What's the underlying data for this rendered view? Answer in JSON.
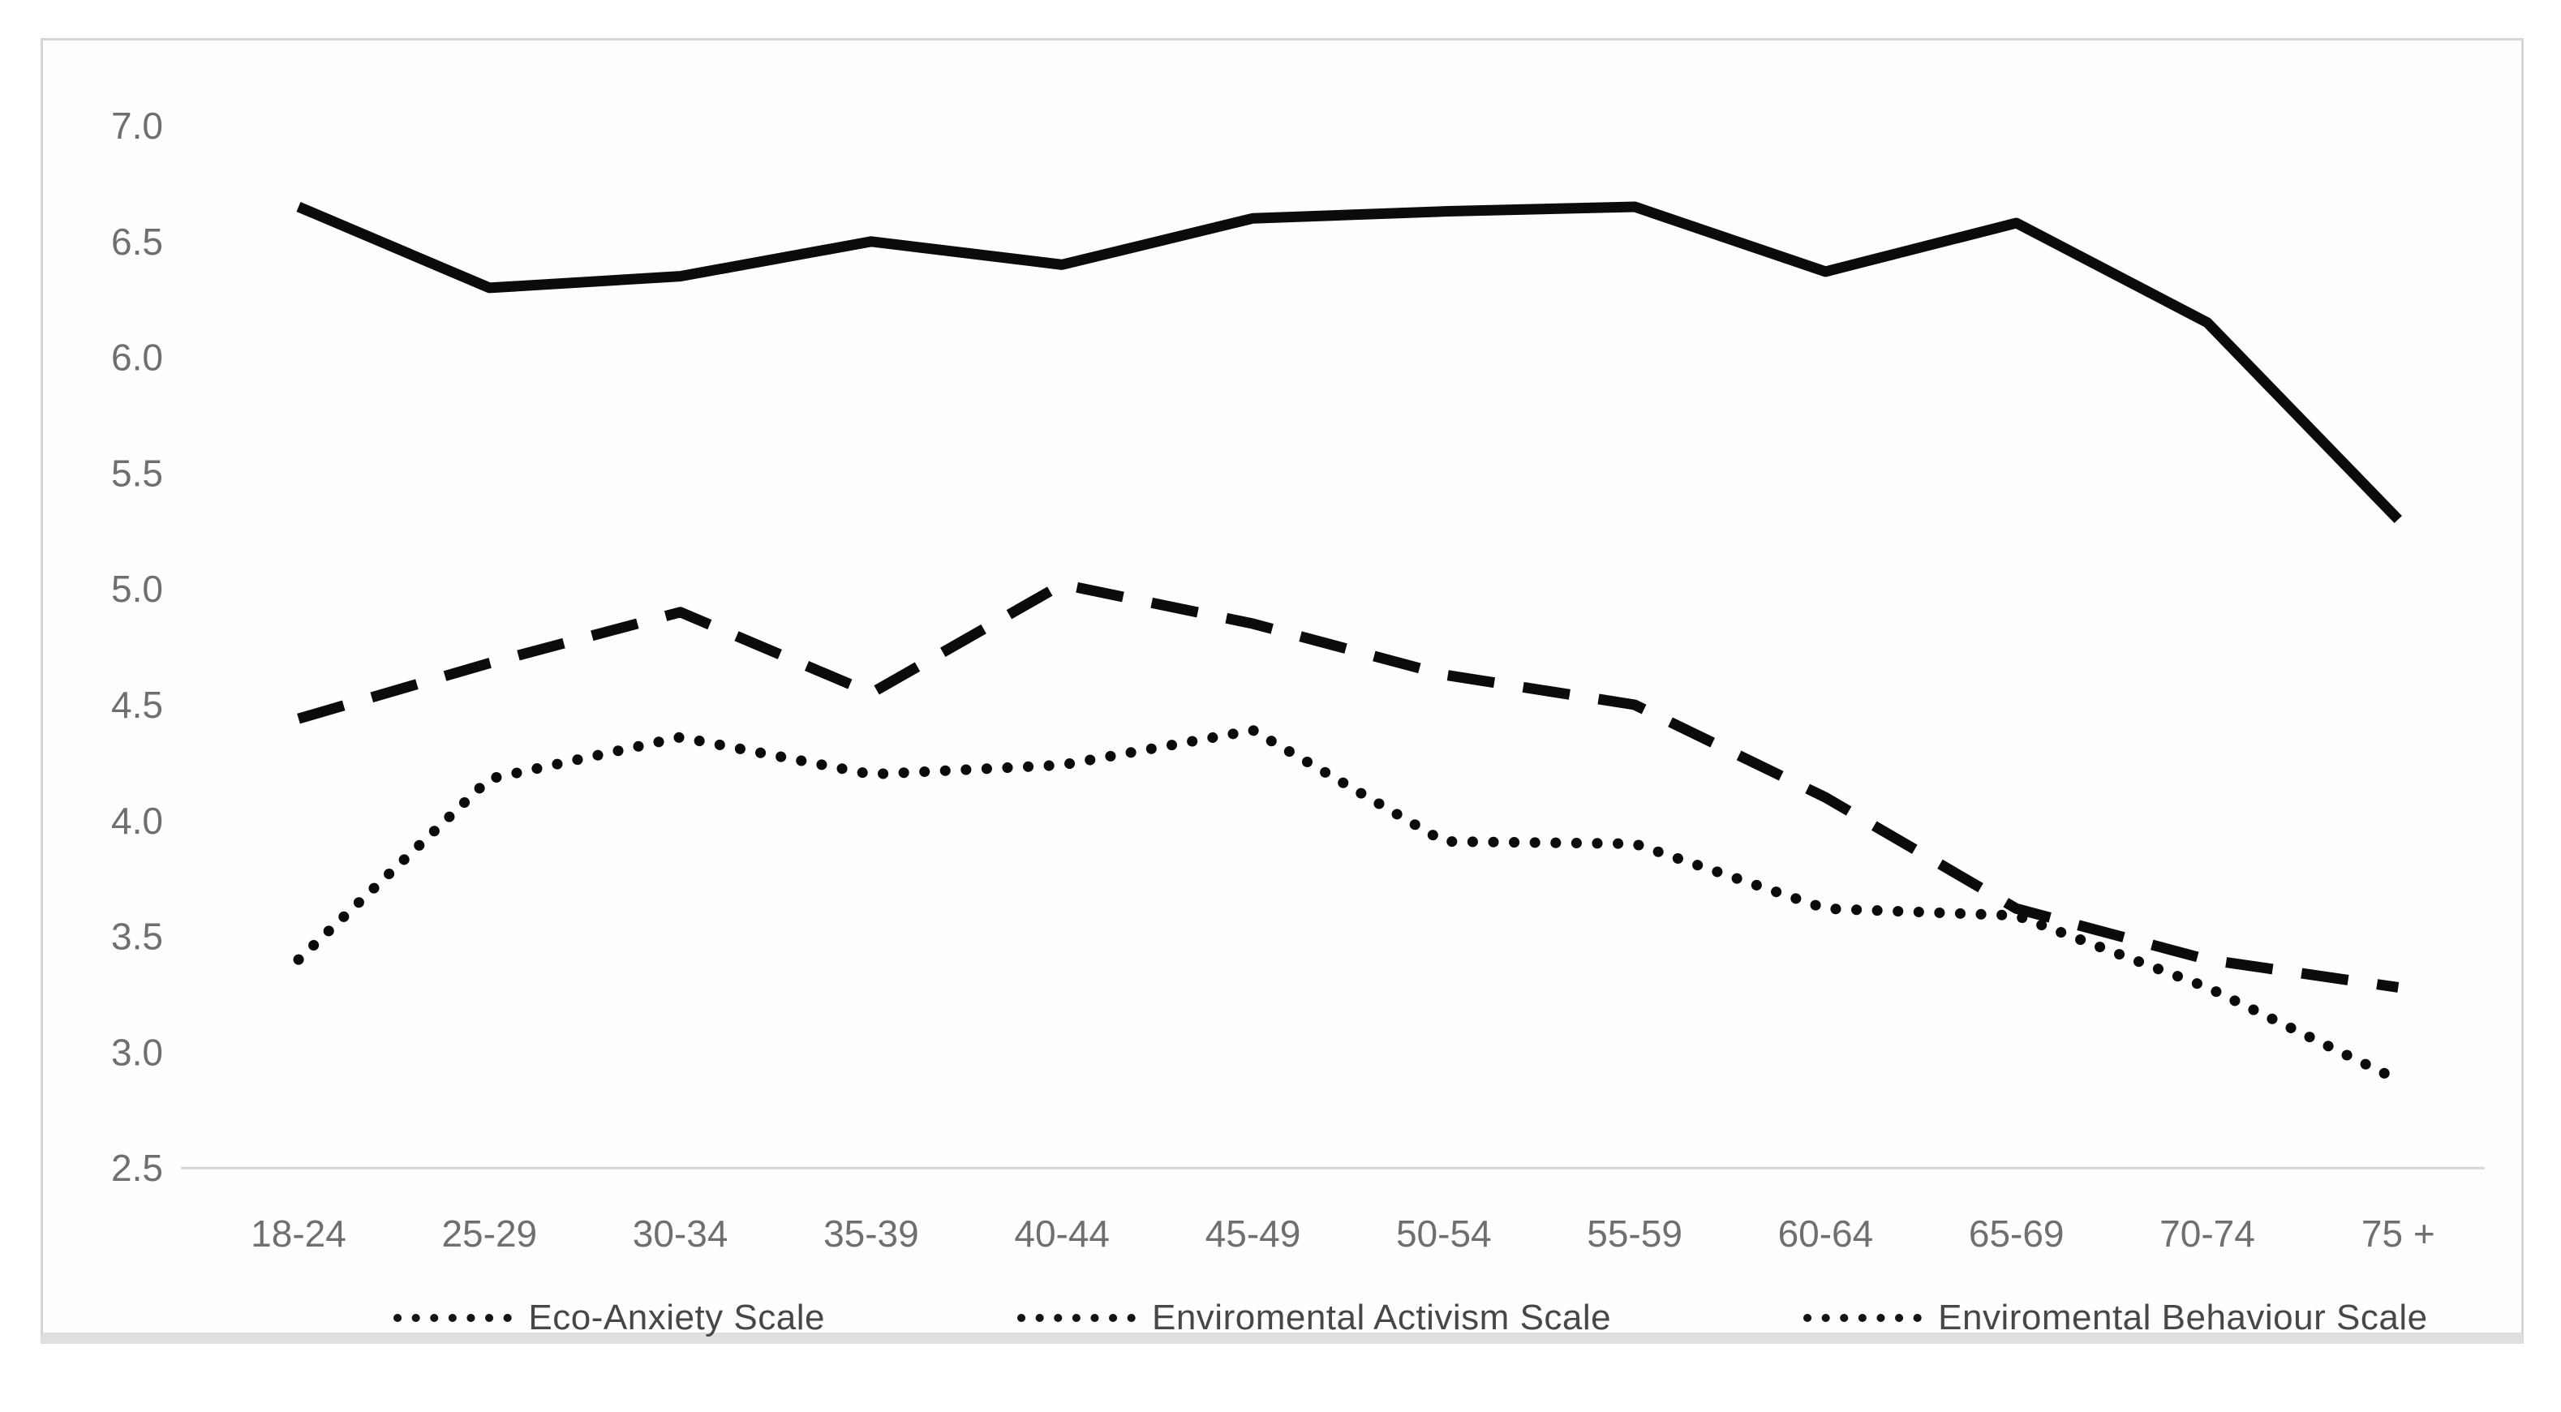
{
  "chart_data": {
    "type": "line",
    "categories": [
      "18-24",
      "25-29",
      "30-34",
      "35-39",
      "40-44",
      "45-49",
      "50-54",
      "55-59",
      "60-64",
      "65-69",
      "70-74",
      "75 +"
    ],
    "y_axis": {
      "min": 2.5,
      "max": 7.0,
      "step": 0.5,
      "tick_labels": [
        "7.0",
        "6.5",
        "6.0",
        "5.5",
        "5.0",
        "4.5",
        "4.0",
        "3.5",
        "3.0",
        "2.5"
      ],
      "tick_color": "#6f6f6f"
    },
    "series": [
      {
        "name": "Eco-Anxiety Scale",
        "line_style": "solid",
        "legend_marker": "dotted",
        "values": [
          6.65,
          6.3,
          6.35,
          6.5,
          6.4,
          6.6,
          6.63,
          6.65,
          6.37,
          6.58,
          6.15,
          5.3
        ]
      },
      {
        "name": "Enviromental Activism Scale",
        "line_style": "dashed",
        "legend_marker": "dotted",
        "values": [
          4.44,
          4.68,
          4.9,
          4.55,
          5.02,
          4.85,
          4.63,
          4.5,
          4.1,
          3.62,
          3.4,
          3.28
        ]
      },
      {
        "name": "Enviromental Behaviour Scale",
        "line_style": "dotted",
        "legend_marker": "dotted",
        "values": [
          3.4,
          4.18,
          4.36,
          4.2,
          4.24,
          4.39,
          3.91,
          3.9,
          3.62,
          3.59,
          3.28,
          2.88
        ]
      }
    ],
    "legend_position": "bottom",
    "grid": "off",
    "line_color": "#0b0b0b",
    "axis_line_color": "#d7d7d7",
    "xlabel": "",
    "ylabel": ""
  }
}
